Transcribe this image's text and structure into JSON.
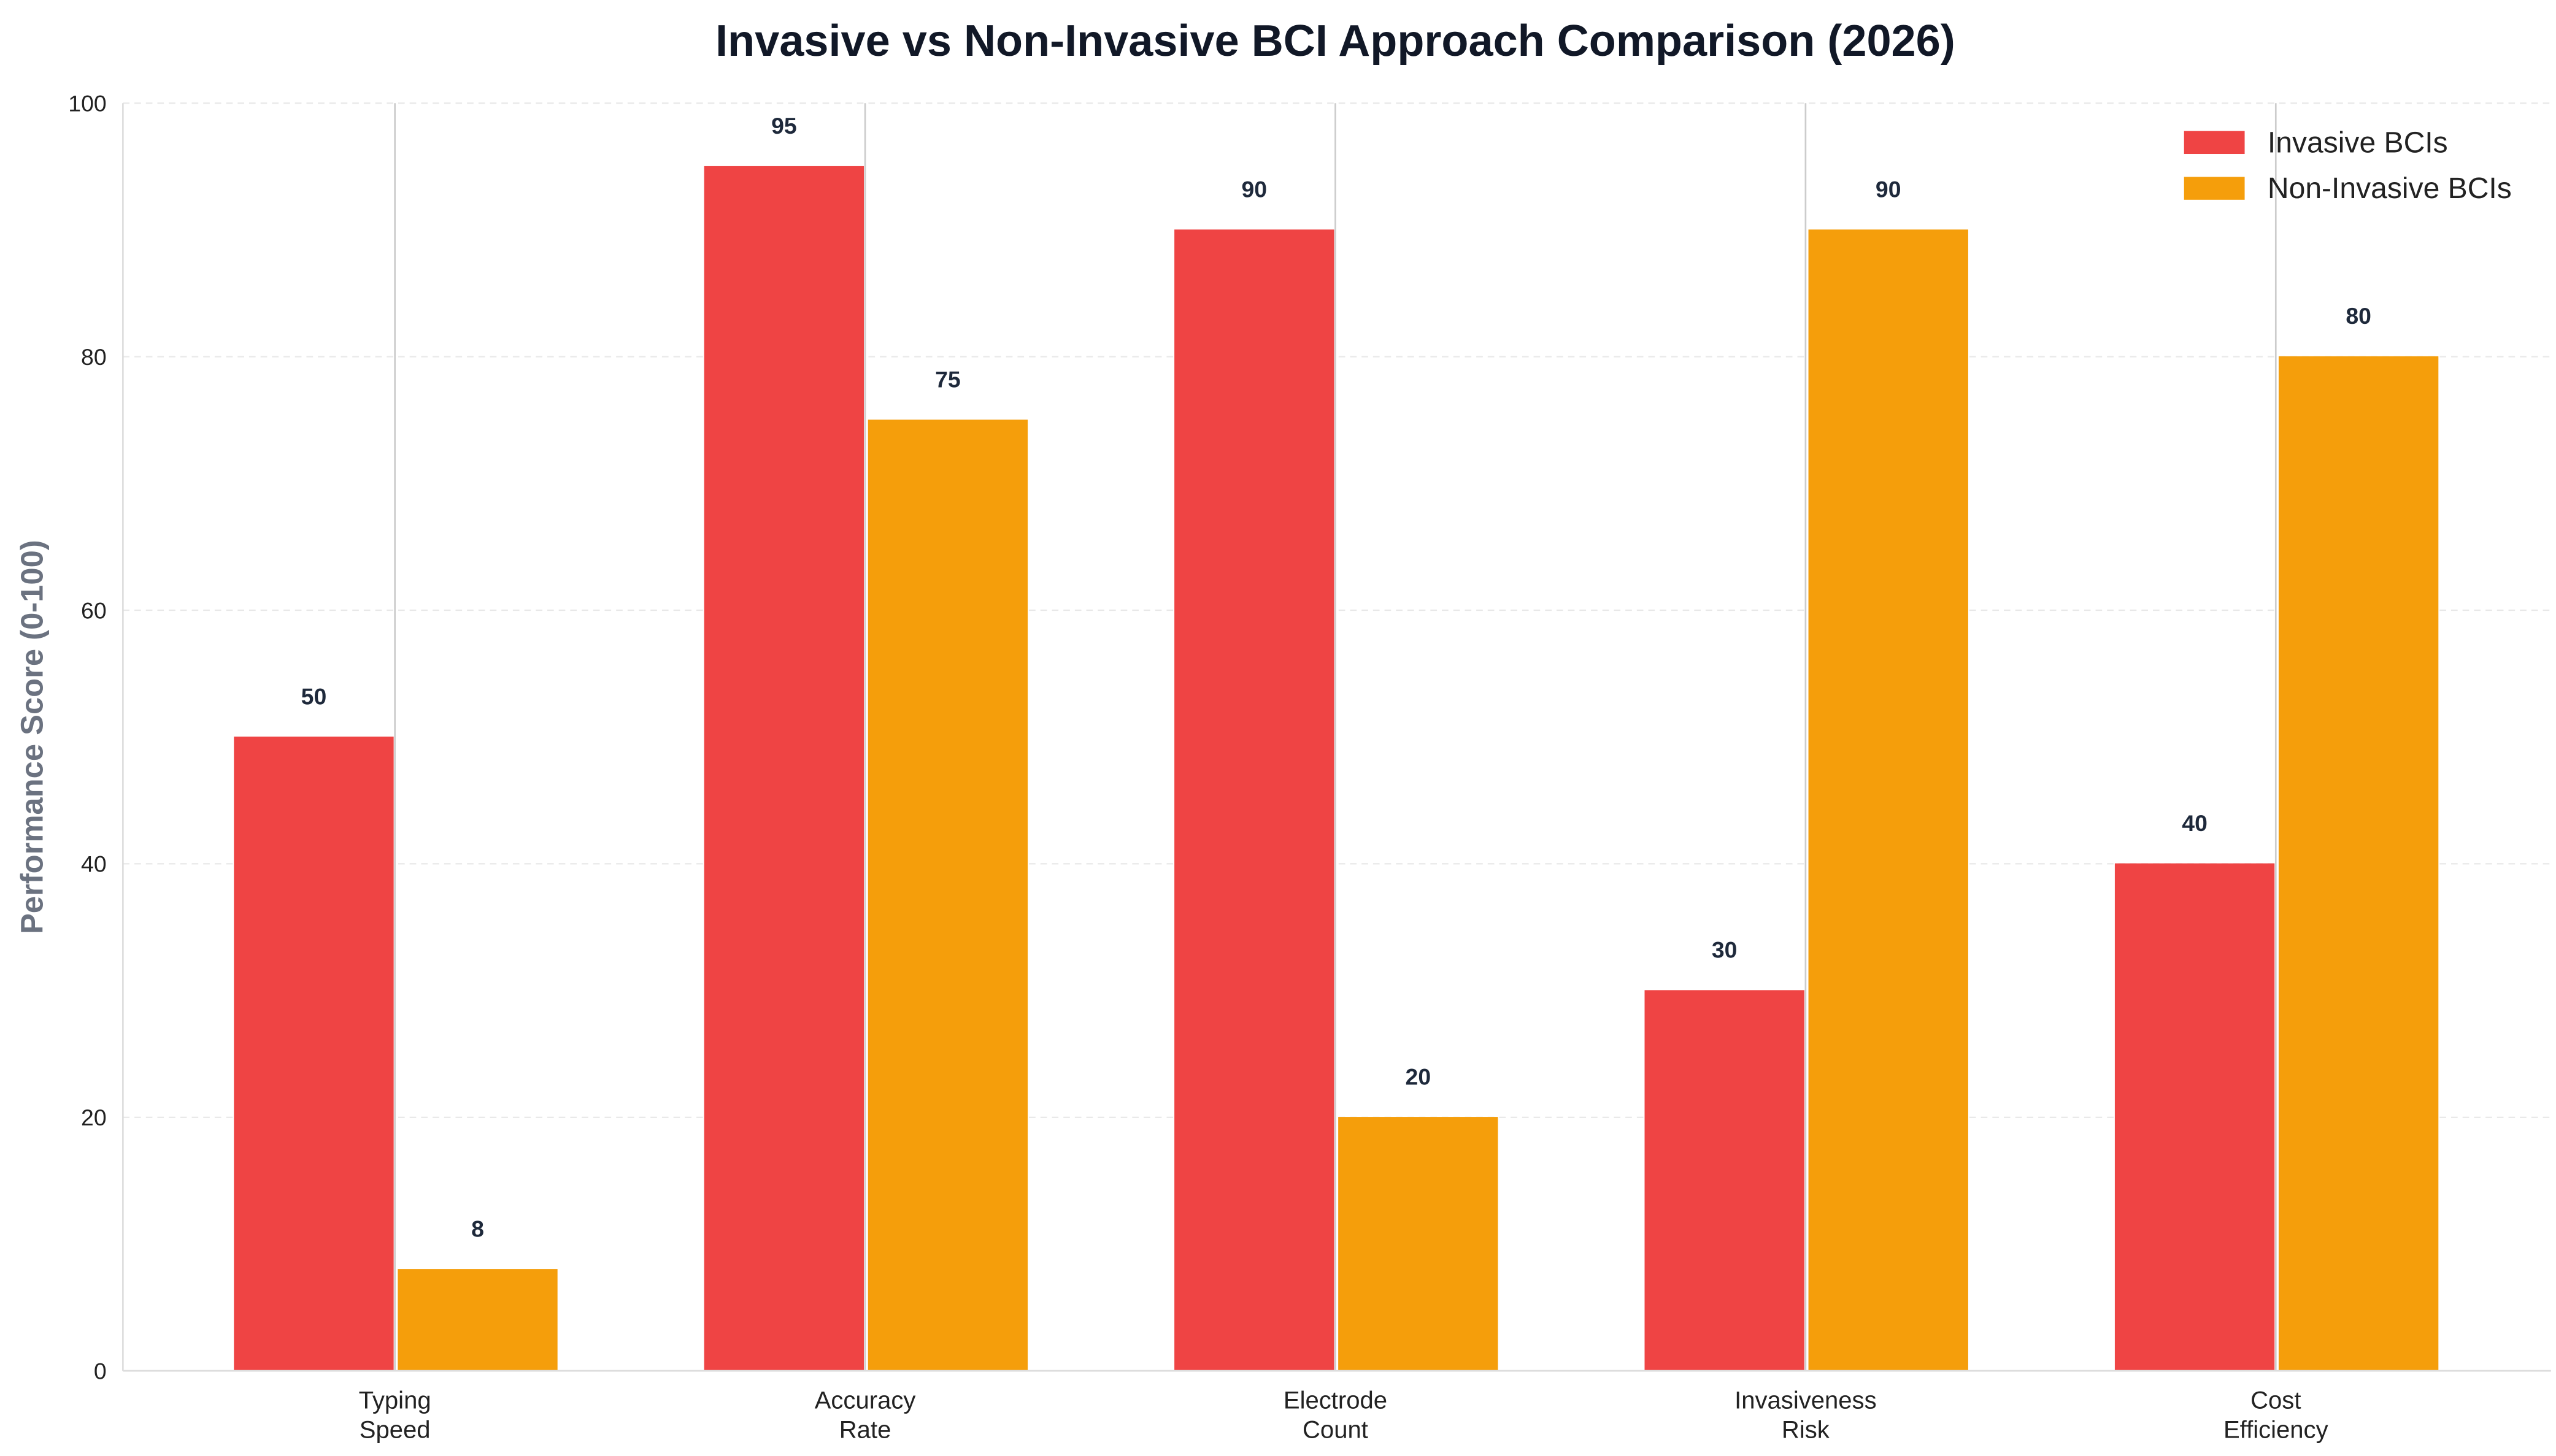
{
  "chart_data": {
    "type": "bar",
    "title": "Invasive vs Non-Invasive BCI Approach Comparison (2026)",
    "xlabel": "",
    "ylabel": "Performance Score (0-100)",
    "ylim": [
      0,
      100
    ],
    "yticks": [
      "0",
      "20",
      "40",
      "60",
      "80",
      "100"
    ],
    "categories": [
      "Typing\nSpeed",
      "Accuracy\nRate",
      "Electrode\nCount",
      "Invasiveness\nRisk",
      "Cost\nEfficiency"
    ],
    "series": [
      {
        "name": "Invasive BCIs",
        "color": "#ef4444",
        "values": [
          50,
          95,
          90,
          30,
          40
        ]
      },
      {
        "name": "Non-Invasive BCIs",
        "color": "#f59e0b",
        "values": [
          8,
          75,
          20,
          90,
          80
        ]
      }
    ],
    "grid": {
      "y": "dashed",
      "x": "at category centers"
    },
    "legend": "top-right"
  }
}
